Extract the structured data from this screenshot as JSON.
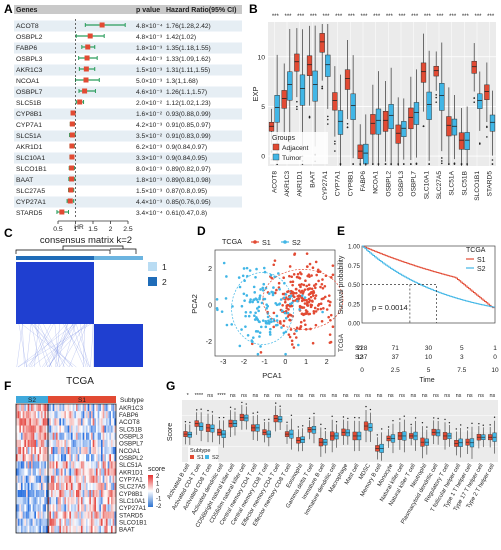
{
  "panels": [
    "A",
    "B",
    "C",
    "D",
    "E",
    "F",
    "G"
  ],
  "colors": {
    "red": "#e24a33",
    "blue": "#41b6e6",
    "darkblue": "#1f3fd0",
    "navy": "#1a2ea8",
    "green": "#2a9d5c",
    "panelbg": "#ebebeb"
  },
  "chart_data": [
    {
      "type": "forest",
      "panel": "A",
      "headers": {
        "genes": "Genes",
        "pvalue": "p value",
        "hr": "Hazard Ratio(95% CI)"
      },
      "xlabel": "HR",
      "ticks": [
        "0.5",
        "1",
        "1.5",
        "2",
        "2.5"
      ],
      "xlim": [
        0.5,
        2.5
      ],
      "rows": [
        {
          "gene": "ACOT8",
          "p": "4.8×10⁻⁴",
          "hrtext": "1.76(1.28,2.42)",
          "hr": 1.76,
          "lo": 1.28,
          "hi": 2.42
        },
        {
          "gene": "OSBPL2",
          "p": "4.8×10⁻³",
          "hrtext": "1.42(1.02)",
          "hr": 1.42,
          "lo": 1.02,
          "hi": 1.82
        },
        {
          "gene": "FABP6",
          "p": "1.8×10⁻³",
          "hrtext": "1.35(1.18,1.55)",
          "hr": 1.35,
          "lo": 1.18,
          "hi": 1.55
        },
        {
          "gene": "OSBPL3",
          "p": "4.4×10⁻³",
          "hrtext": "1.33(1.09,1.62)",
          "hr": 1.33,
          "lo": 1.09,
          "hi": 1.62
        },
        {
          "gene": "AKR1C3",
          "p": "1.5×10⁻³",
          "hrtext": "1.31(1.11,1.55)",
          "hr": 1.31,
          "lo": 1.11,
          "hi": 1.55
        },
        {
          "gene": "NCOA1",
          "p": "5.0×10⁻³",
          "hrtext": "1.3(1,1.68)",
          "hr": 1.3,
          "lo": 1.0,
          "hi": 1.68
        },
        {
          "gene": "OSBPL7",
          "p": "4.6×10⁻³",
          "hrtext": "1.26(1.1,1.57)",
          "hr": 1.26,
          "lo": 1.1,
          "hi": 1.57
        },
        {
          "gene": "SLC51B",
          "p": "2.0×10⁻²",
          "hrtext": "1.12(1.02,1.23)",
          "hr": 1.12,
          "lo": 1.02,
          "hi": 1.23
        },
        {
          "gene": "CYP8B1",
          "p": "1.6×10⁻²",
          "hrtext": "0.93(0.88,0.99)",
          "hr": 0.93,
          "lo": 0.88,
          "hi": 0.99
        },
        {
          "gene": "CYP7A1",
          "p": "4.2×10⁻³",
          "hrtext": "0.91(0.85,0.97)",
          "hr": 0.91,
          "lo": 0.85,
          "hi": 0.97
        },
        {
          "gene": "SLC51A",
          "p": "3.5×10⁻²",
          "hrtext": "0.91(0.83,0.99)",
          "hr": 0.91,
          "lo": 0.83,
          "hi": 0.99
        },
        {
          "gene": "AKR1D1",
          "p": "6.2×10⁻³",
          "hrtext": "0.9(0.84,0.97)",
          "hr": 0.9,
          "lo": 0.84,
          "hi": 0.97
        },
        {
          "gene": "SLC10A1",
          "p": "3.3×10⁻³",
          "hrtext": "0.9(0.84,0.95)",
          "hr": 0.9,
          "lo": 0.84,
          "hi": 0.95
        },
        {
          "gene": "SLCO1B1",
          "p": "8.0×10⁻³",
          "hrtext": "0.89(0.82,0.97)",
          "hr": 0.89,
          "lo": 0.82,
          "hi": 0.97
        },
        {
          "gene": "BAAT",
          "p": "1.8×10⁻³",
          "hrtext": "0.89(0.81,0.98)",
          "hr": 0.89,
          "lo": 0.81,
          "hi": 0.98
        },
        {
          "gene": "SLC27A5",
          "p": "1.5×10⁻³",
          "hrtext": "0.87(0.8,0.95)",
          "hr": 0.87,
          "lo": 0.8,
          "hi": 0.95
        },
        {
          "gene": "CYP27A1",
          "p": "4.4×10⁻³",
          "hrtext": "0.85(0.76,0.95)",
          "hr": 0.85,
          "lo": 0.76,
          "hi": 0.95
        },
        {
          "gene": "STARD5",
          "p": "3.4×10⁻⁴",
          "hrtext": "0.61(0.47,0.8)",
          "hr": 0.61,
          "lo": 0.47,
          "hi": 0.8
        }
      ]
    },
    {
      "type": "boxplot",
      "panel": "B",
      "ylabel": "EXP",
      "yticks": [
        "0",
        "5",
        "10"
      ],
      "ylim": [
        -1,
        13.5
      ],
      "legend": {
        "title": "Groups",
        "items": [
          "Adjacent",
          "Tumor"
        ]
      },
      "significance": "***",
      "genes": [
        "ACOT8",
        "AKR1C3",
        "AKR1D1",
        "BAAT",
        "CYP27A1",
        "CYP7A1",
        "CYP8B1",
        "FABP6",
        "NCOA1",
        "OSBPL2",
        "OSBPL3",
        "OSBPL7",
        "SLC10A1",
        "SLC27A5",
        "SLC51A",
        "SLC51B",
        "SLCO1B1",
        "STARD5"
      ],
      "adjacent_median": [
        3.0,
        5.8,
        9.5,
        9.2,
        11.5,
        5.6,
        7.8,
        0.5,
        3.3,
        3.6,
        2.3,
        3.9,
        8.5,
        8.6,
        3.1,
        1.6,
        9.0,
        6.5
      ],
      "tumor_median": [
        4.9,
        7.2,
        6.8,
        7.2,
        9.2,
        3.5,
        5.1,
        0.3,
        3.6,
        4.1,
        2.8,
        4.4,
        5.2,
        6.1,
        3.0,
        1.6,
        5.6,
        3.4
      ]
    },
    {
      "type": "heatmap",
      "panel": "C",
      "title": "consensus matrix k=2",
      "xlabel": "TCGA",
      "legend": [
        "1",
        "2"
      ]
    },
    {
      "type": "scatter",
      "panel": "D",
      "legend_title": "TCGA",
      "legend": [
        "S1",
        "S2"
      ],
      "xlabel": "PCA1",
      "ylabel": "PCA2",
      "xticks": [
        "-3",
        "-2",
        "-1",
        "0",
        "1",
        "2"
      ],
      "yticks": [
        "-2",
        "0",
        "2"
      ]
    },
    {
      "type": "line",
      "panel": "E",
      "legend_title": "TCGA",
      "legend": [
        "S1",
        "S2"
      ],
      "xlabel": "Time",
      "ylabel": "Survival probability",
      "xticks": [
        "0",
        "2.5",
        "5",
        "7.5",
        "10"
      ],
      "yticks": [
        "0.00",
        "0.25",
        "0.50",
        "0.75",
        "1.00"
      ],
      "pvalue": "p = 0.0014",
      "risk_table": {
        "label": "TCGA",
        "rows": [
          {
            "name": "S1",
            "values": [
              "228",
              "71",
              "30",
              "5",
              "1"
            ]
          },
          {
            "name": "S2",
            "values": [
              "137",
              "37",
              "10",
              "3",
              "0"
            ]
          }
        ]
      }
    },
    {
      "type": "heatmap",
      "panel": "F",
      "annotation": "Subtype",
      "groups": [
        "S2",
        "S1"
      ],
      "genes": [
        "AKR1C3",
        "FABP6",
        "ACOT8",
        "SLC51B",
        "OSBPL3",
        "OSBPL7",
        "NCOA1",
        "OSBPL2",
        "SLC51A",
        "AKR1D1",
        "CYP7A1",
        "SLC27A5",
        "CYP8B1",
        "SLC10A1",
        "CYP27A1",
        "STARD5",
        "SLCO1B1",
        "BAAT"
      ],
      "legend_title": "score",
      "legend_ticks": [
        "2",
        "1",
        "0",
        "-1",
        "-2"
      ]
    },
    {
      "type": "boxplot",
      "panel": "G",
      "ylabel": "Score",
      "legend": {
        "title": "Subtype",
        "items": [
          "S1",
          "S2"
        ]
      },
      "significance": [
        "*",
        "****",
        "ns",
        "****",
        "ns",
        "ns",
        "ns",
        "ns",
        "ns",
        "ns",
        "ns",
        "ns",
        "ns",
        "ns",
        "ns",
        "ns",
        "ns",
        "ns",
        "ns",
        "ns",
        "ns",
        "ns",
        "ns",
        "ns",
        "ns",
        "ns",
        "ns",
        "ns"
      ],
      "cells": [
        "Activated B cell",
        "Activated CD4 T cell",
        "Activated CD8 T cell",
        "Activated dendritic cell",
        "CD56bright natural killer cell",
        "CD56dim natural killer cell",
        "Central memory CD4 T cell",
        "Central memory CD8 T cell",
        "Effector memory CD4 T cell",
        "Effector memory CD8 T cell",
        "Eosinophil",
        "Gamma delta T cell",
        "Immature B cell",
        "Immature dendritic cell",
        "Macrophage",
        "Mast cell",
        "MDSC",
        "Memory B cell",
        "Monocyte",
        "Natural killer cell",
        "Natural killer T cell",
        "Neutrophil",
        "Plasmacytoid dendritic cell",
        "Regulatory T cell",
        "T follicular helper cell",
        "Type 1 T helper cell",
        "Type 17 T helper cell",
        "Type 2 T helper cell"
      ],
      "s1_median": [
        0.45,
        0.62,
        0.55,
        0.48,
        0.62,
        0.72,
        0.55,
        0.48,
        0.7,
        0.45,
        0.35,
        0.52,
        0.32,
        0.42,
        0.48,
        0.42,
        0.58,
        0.22,
        0.38,
        0.42,
        0.42,
        0.32,
        0.48,
        0.42,
        0.3,
        0.32,
        0.4,
        0.4
      ],
      "s2_median": [
        0.44,
        0.57,
        0.54,
        0.45,
        0.62,
        0.71,
        0.55,
        0.45,
        0.69,
        0.45,
        0.36,
        0.52,
        0.32,
        0.42,
        0.47,
        0.42,
        0.56,
        0.22,
        0.38,
        0.42,
        0.42,
        0.32,
        0.47,
        0.42,
        0.31,
        0.31,
        0.4,
        0.4
      ]
    }
  ]
}
